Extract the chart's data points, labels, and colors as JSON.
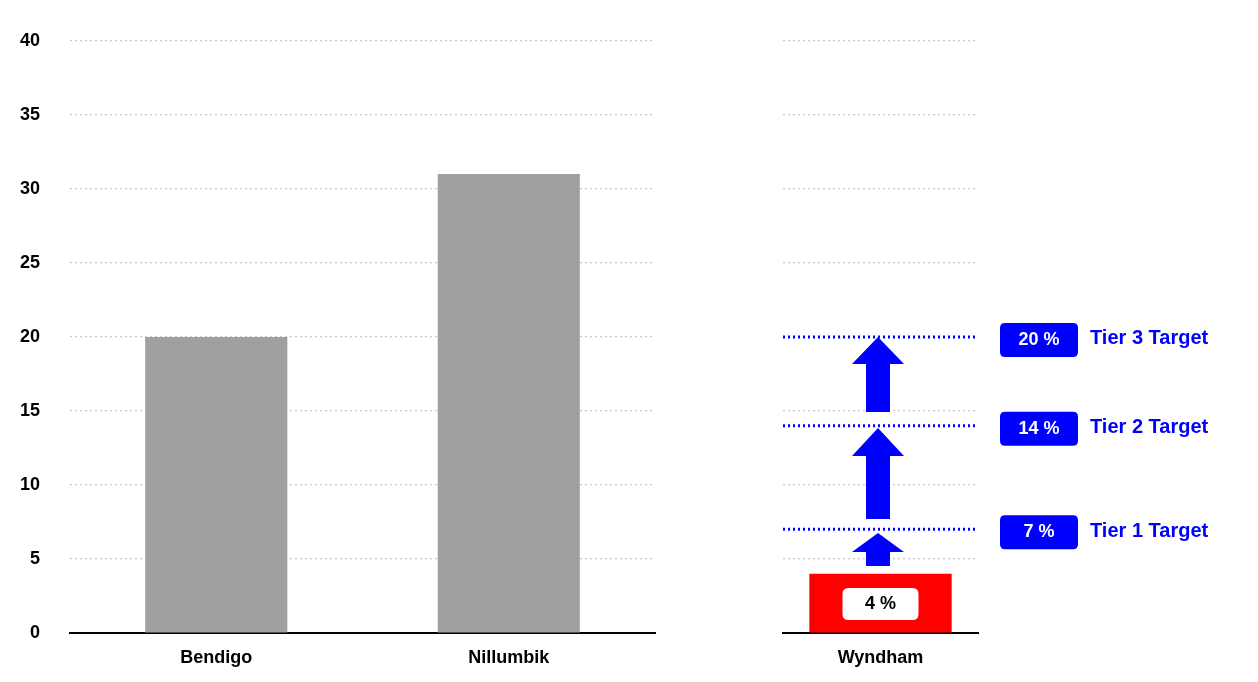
{
  "chart_data": [
    {
      "type": "bar",
      "categories": [
        "Bendigo",
        "Nillumbik"
      ],
      "values": [
        20,
        31
      ],
      "color": "#a0a0a0",
      "ylim": [
        0,
        40
      ],
      "yticks": [
        0,
        5,
        10,
        15,
        20,
        25,
        30,
        35,
        40
      ],
      "grid": "y",
      "legend": false
    },
    {
      "type": "bar",
      "categories": [
        "Wyndham"
      ],
      "values": [
        4
      ],
      "color": "#ff0000",
      "value_labels": [
        "4 %"
      ],
      "ylim": [
        0,
        40
      ],
      "yticks": [
        0,
        5,
        10,
        15,
        20,
        25,
        30,
        35,
        40
      ],
      "grid": "y",
      "legend": false,
      "tick_labels": "x",
      "ref_lines": [
        {
          "axis": "y",
          "value": 7,
          "label": "Tier 1 Target",
          "color": "#0000ff",
          "line_style": "dotted"
        },
        {
          "axis": "y",
          "value": 14,
          "label": "Tier 2 Target",
          "color": "#0000ff",
          "line_style": "dotted"
        },
        {
          "axis": "y",
          "value": 20,
          "label": "Tier 3 Target",
          "color": "#0000ff",
          "line_style": "dotted"
        }
      ],
      "annotations": [
        "7 %",
        "14 %",
        "20 %"
      ]
    }
  ]
}
